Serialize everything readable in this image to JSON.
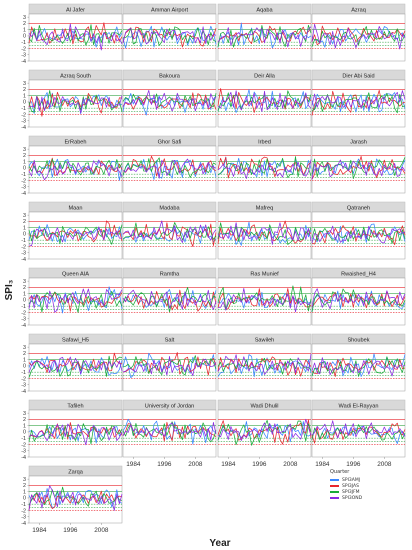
{
  "chart_data": {
    "type": "line",
    "ylabel": "SPI₃",
    "xlabel": "Year",
    "x_ticks": [
      "1984",
      "1996",
      "2008"
    ],
    "y_ticks": [
      3,
      2,
      1,
      0,
      -1,
      -2,
      -3,
      -4
    ],
    "ylim": [
      -4,
      3.5
    ],
    "xlim": [
      1980,
      2016
    ],
    "reference_lines": [
      {
        "y": 2.0,
        "color": "#e8262e",
        "style": "solid"
      },
      {
        "y": 1.0,
        "color": "#3aa84a",
        "style": "solid"
      },
      {
        "y": -1.0,
        "color": "#3aa84a",
        "style": "dashed"
      },
      {
        "y": -1.5,
        "color": "#3aa84a",
        "style": "dashed"
      },
      {
        "y": -2.0,
        "color": "#e8262e",
        "style": "dashed"
      }
    ],
    "legend": {
      "title": "Quarter",
      "placement": "bottom-right",
      "items": [
        {
          "label": "SPI3AMJ",
          "color": "#3a86ff"
        },
        {
          "label": "SPI3JAS",
          "color": "#e8262e"
        },
        {
          "label": "SPI3JFM",
          "color": "#1aab3a"
        },
        {
          "label": "SPI3OND",
          "color": "#8b2be2"
        }
      ]
    },
    "panels": [
      "Al Jafer",
      "Amman Airport",
      "Aqaba",
      "Azraq",
      "Azraq South",
      "Bakoura",
      "Deir Alla",
      "Dier Abi Said",
      "ErRabeh",
      "Ghor Safi",
      "Irbed",
      "Jarash",
      "Maan",
      "Madaba",
      "Mafreq",
      "Qatraneh",
      "Queen AIA",
      "Ramtha",
      "Ras Munief",
      "Rwaished_H4",
      "Safawi_H5",
      "Salt",
      "Sawileh",
      "Shoubek",
      "Tafileh",
      "University of Jordan",
      "Wadi Dhulil",
      "Wadi El-Rayyan",
      "Zarqa"
    ]
  }
}
